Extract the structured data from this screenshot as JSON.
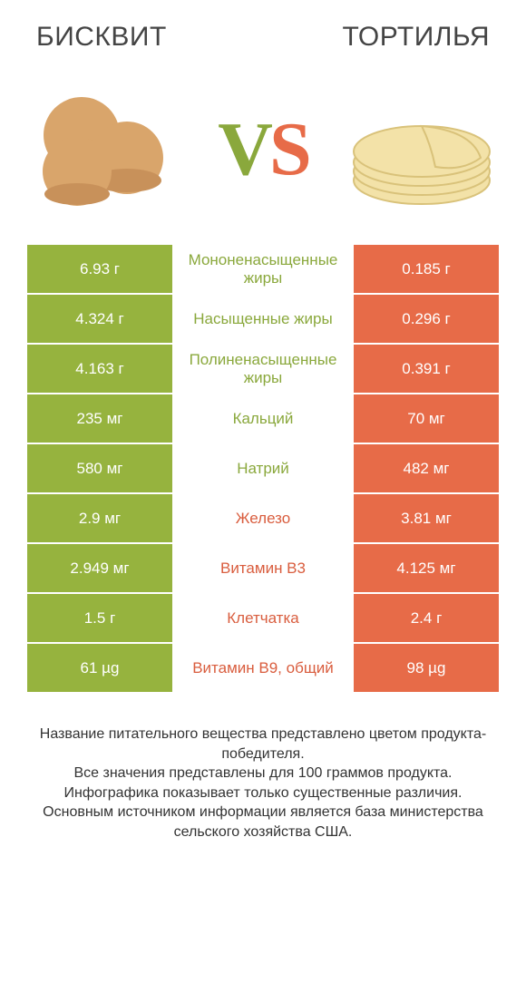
{
  "header": {
    "left_title": "БИСКВИТ",
    "right_title": "ТОРТИЛЬЯ"
  },
  "vs": {
    "v": "V",
    "s": "S"
  },
  "colors": {
    "left_bg": "#96b33e",
    "right_bg": "#e76b48",
    "mid_text_left": "#8aa83c",
    "mid_text_right": "#d95d3e"
  },
  "rows": [
    {
      "left": "6.93 г",
      "label": "Мононенасыщенные жиры",
      "right": "0.185 г",
      "winner": "left"
    },
    {
      "left": "4.324 г",
      "label": "Насыщенные жиры",
      "right": "0.296 г",
      "winner": "left"
    },
    {
      "left": "4.163 г",
      "label": "Полиненасыщенные жиры",
      "right": "0.391 г",
      "winner": "left"
    },
    {
      "left": "235 мг",
      "label": "Кальций",
      "right": "70 мг",
      "winner": "left"
    },
    {
      "left": "580 мг",
      "label": "Натрий",
      "right": "482 мг",
      "winner": "left"
    },
    {
      "left": "2.9 мг",
      "label": "Железо",
      "right": "3.81 мг",
      "winner": "right"
    },
    {
      "left": "2.949 мг",
      "label": "Витамин B3",
      "right": "4.125 мг",
      "winner": "right"
    },
    {
      "left": "1.5 г",
      "label": "Клетчатка",
      "right": "2.4 г",
      "winner": "right"
    },
    {
      "left": "61 µg",
      "label": "Витамин B9, общий",
      "right": "98 µg",
      "winner": "right"
    }
  ],
  "footer": {
    "line1": "Название питательного вещества представлено цветом продукта-победителя.",
    "line2": "Все значения представлены для 100 граммов продукта.",
    "line3": "Инфографика показывает только существенные различия.",
    "line4": "Основным источником информации является база министерства сельского хозяйства США."
  }
}
